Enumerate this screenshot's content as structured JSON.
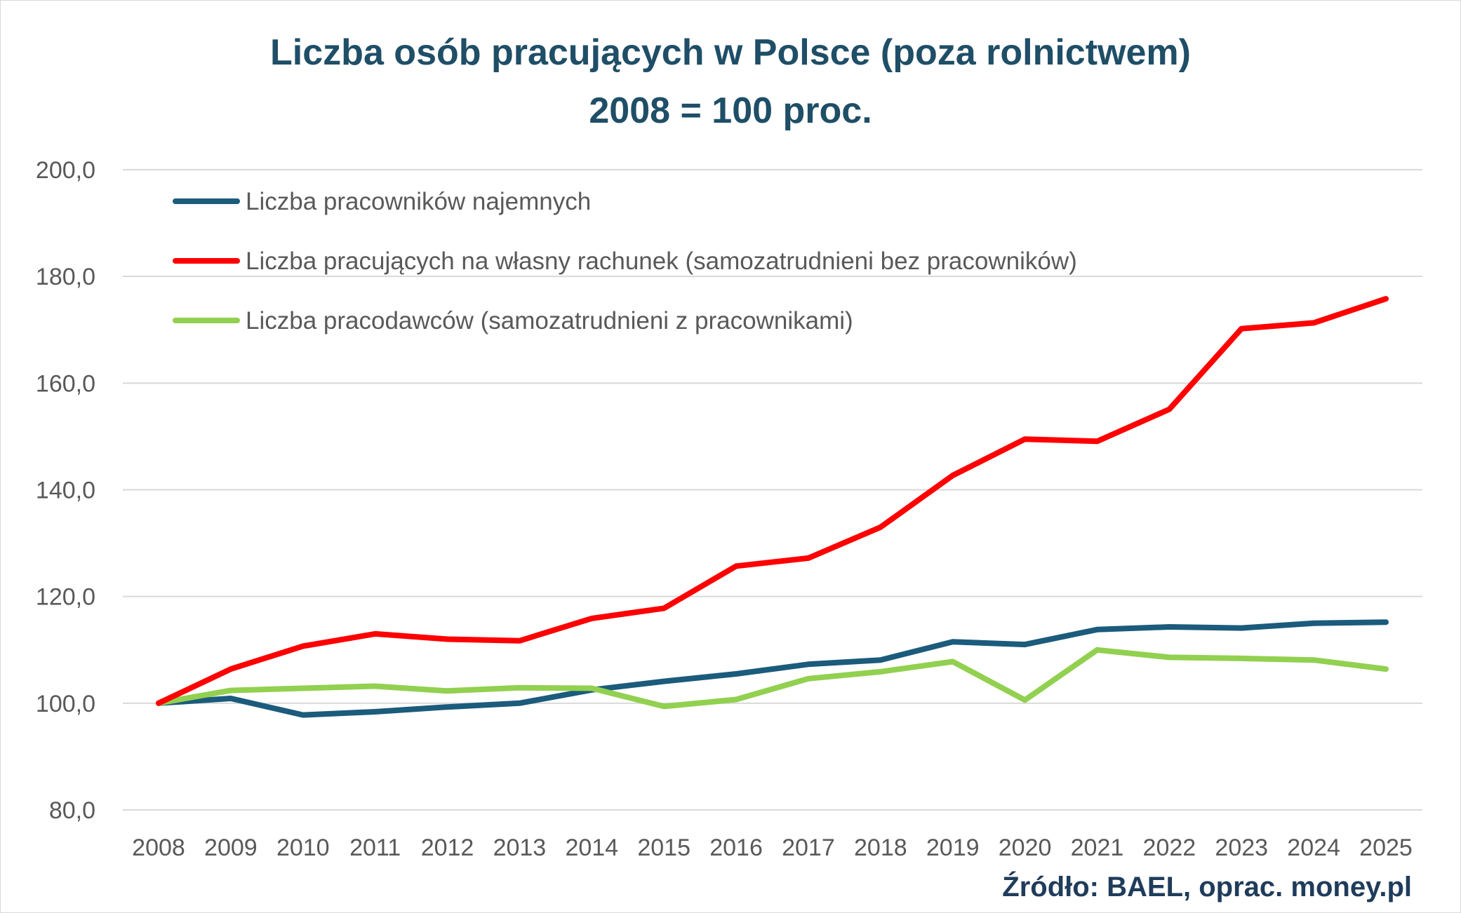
{
  "chart_data": {
    "type": "line",
    "title": "Liczba osób pracujących w Polsce (poza rolnictwem)",
    "subtitle": "2008 = 100 proc.",
    "xlabel": "",
    "ylabel": "",
    "ylim": [
      80,
      200
    ],
    "y_ticks": [
      "80,0",
      "100,0",
      "120,0",
      "140,0",
      "160,0",
      "180,0",
      "200,0"
    ],
    "y_tick_values": [
      80,
      100,
      120,
      140,
      160,
      180,
      200
    ],
    "grid": true,
    "legend_position": "top-left",
    "categories": [
      "2008",
      "2009",
      "2010",
      "2011",
      "2012",
      "2013",
      "2014",
      "2015",
      "2016",
      "2017",
      "2018",
      "2019",
      "2020",
      "2021",
      "2022",
      "2023",
      "2024",
      "2025"
    ],
    "series": [
      {
        "name": "Liczba pracowników najemnych",
        "color": "#1b5b7c",
        "values": [
          100.0,
          100.9,
          97.8,
          98.4,
          99.3,
          100.0,
          102.5,
          104.1,
          105.5,
          107.3,
          108.1,
          111.5,
          111.0,
          113.8,
          114.3,
          114.1,
          115.0,
          115.2
        ]
      },
      {
        "name": "Liczba pracujących na własny rachunek (samozatrudnieni bez pracowników)",
        "color": "#ff0000",
        "values": [
          100.0,
          106.4,
          110.7,
          113.0,
          112.0,
          111.7,
          115.9,
          117.8,
          125.7,
          127.2,
          133.0,
          142.7,
          149.5,
          149.1,
          155.1,
          170.2,
          171.3,
          175.8
        ]
      },
      {
        "name": "Liczba pracodawców (samozatrudnieni z pracownikami)",
        "color": "#92d050",
        "values": [
          100.0,
          102.4,
          102.8,
          103.2,
          102.3,
          102.9,
          102.8,
          99.4,
          100.7,
          104.6,
          105.9,
          107.8,
          100.6,
          110.0,
          108.6,
          108.4,
          108.1,
          106.4
        ]
      }
    ],
    "source": "Źródło: BAEL, oprac. money.pl"
  }
}
